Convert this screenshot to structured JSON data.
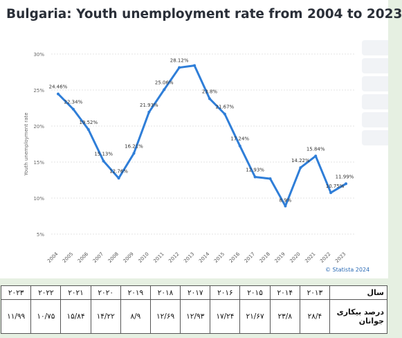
{
  "title": "Bulgaria: Youth unemployment rate from 2004 to 2023",
  "source_text": "© Statista 2024",
  "chart_data": {
    "type": "line",
    "x": [
      "2004",
      "2005",
      "2006",
      "2007",
      "2008",
      "2009",
      "2010",
      "2011",
      "2012",
      "2013",
      "2014",
      "2015",
      "2016",
      "2017",
      "2018",
      "2019",
      "2020",
      "2021",
      "2022",
      "2023"
    ],
    "values": [
      24.46,
      22.34,
      19.52,
      15.13,
      12.76,
      16.21,
      21.93,
      25.06,
      28.12,
      28.4,
      23.8,
      21.67,
      17.24,
      12.93,
      12.69,
      8.9,
      14.22,
      15.84,
      10.75,
      11.99
    ],
    "labels": [
      "24.46%",
      "22.34%",
      "19.52%",
      "15.13%",
      "12.76%",
      "16.21%",
      "21.93%",
      "25.06%",
      "28.12%",
      "",
      "23.8%",
      "21.67%",
      "17.24%",
      "12.93%",
      "",
      "8.9%",
      "14.22%",
      "15.84%",
      "10.75%",
      "11.99%"
    ],
    "ylabel": "Youth unemployment rate",
    "ylim": [
      5,
      30
    ],
    "yticks": [
      "5%",
      "10%",
      "15%",
      "20%",
      "25%",
      "30%"
    ],
    "line_color": "#2f7ed8",
    "grid": true
  },
  "table": {
    "row1_label": "سال",
    "row2_label": "درصد بیکاری جوانان",
    "years": [
      "۲۰۱۳",
      "۲۰۱۴",
      "۲۰۱۵",
      "۲۰۱۶",
      "۲۰۱۷",
      "۲۰۱۸",
      "۲۰۱۹",
      "۲۰۲۰",
      "۲۰۲۱",
      "۲۰۲۲",
      "۲۰۲۳"
    ],
    "rates": [
      "۲۸/۴",
      "۲۳/۸",
      "۲۱/۶۷",
      "۱۷/۲۴",
      "۱۲/۹۳",
      "۱۲/۶۹",
      "۸/۹",
      "۱۴/۲۲",
      "۱۵/۸۴",
      "۱۰/۷۵",
      "۱۱/۹۹"
    ]
  }
}
